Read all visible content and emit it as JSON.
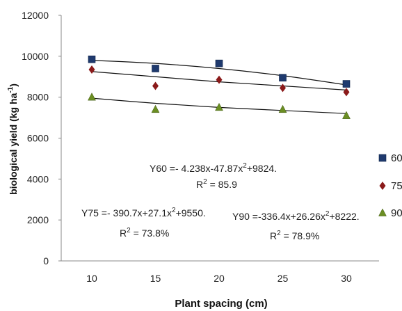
{
  "chart_data": {
    "type": "scatter",
    "xlabel": "Plant spacing (cm)",
    "ylabel": "biological yield (kg ha",
    "ylabel_sup": "-1",
    "ylabel_close": ")",
    "x": [
      10,
      15,
      20,
      25,
      30
    ],
    "xticks": [
      "10",
      "15",
      "20",
      "25",
      "30"
    ],
    "ylim": [
      0,
      12000
    ],
    "yticks": [
      "0",
      "2000",
      "4000",
      "6000",
      "8000",
      "10000",
      "12000"
    ],
    "grid": false,
    "legend_position": "right",
    "series": [
      {
        "name": "60",
        "marker": "square",
        "color": "#1f3a6e",
        "values": [
          9850,
          9400,
          9650,
          8950,
          8650
        ],
        "trend": [
          9800,
          9650,
          9400,
          9050,
          8600
        ]
      },
      {
        "name": "75",
        "marker": "diamond",
        "color": "#8b1a1a",
        "values": [
          9350,
          8550,
          8850,
          8450,
          8250
        ],
        "trend": [
          9250,
          9000,
          8750,
          8550,
          8350
        ]
      },
      {
        "name": "90",
        "marker": "triangle",
        "color": "#6b8e23",
        "values": [
          8000,
          7400,
          7500,
          7400,
          7100
        ],
        "trend": [
          7950,
          7700,
          7500,
          7350,
          7200
        ]
      }
    ],
    "annotations": [
      {
        "line1": "Y60 =- 4.238x-47.87x",
        "sup": "2",
        "line1_end": "+9824.",
        "line2": "R",
        "line2_sup": "2",
        "line2_end": " = 85.9"
      },
      {
        "line1": "Y75 =- 390.7x+27.1x",
        "sup": "2",
        "line1_end": "+9550.",
        "line2": "R",
        "line2_sup": "2",
        "line2_end": " = 73.8%"
      },
      {
        "line1": "Y90 =-336.4x+26.26x",
        "sup": "2",
        "line1_end": "+8222.",
        "line2": "R",
        "line2_sup": "2",
        "line2_end": " = 78.9%"
      }
    ]
  }
}
